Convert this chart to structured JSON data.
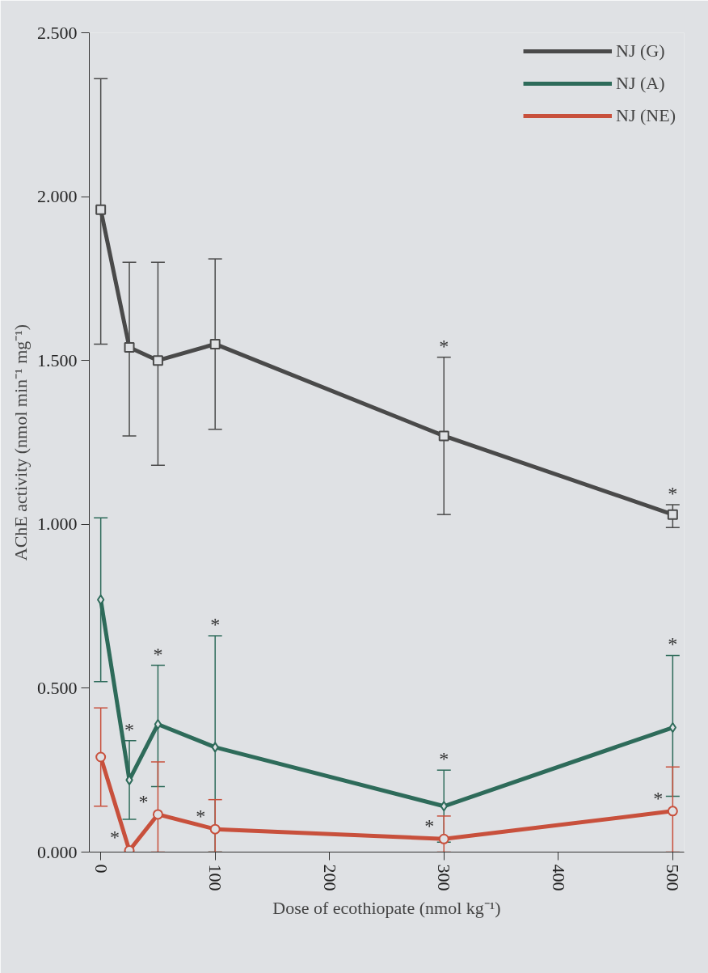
{
  "chart_data": {
    "type": "line",
    "xlabel": "Dose of ecothiopate (nmol kg⁻¹)",
    "ylabel": "AChE activity (nmol min⁻¹ mg⁻¹)",
    "x": [
      0,
      25,
      50,
      100,
      300,
      500
    ],
    "xlim": [
      -10,
      510
    ],
    "xticks": [
      0,
      100,
      200,
      300,
      400,
      500
    ],
    "ylim": [
      0,
      2.5
    ],
    "yticks": [
      {
        "value": 0,
        "label": "0.000"
      },
      {
        "value": 0.5,
        "label": "0.500"
      },
      {
        "value": 1,
        "label": "1.000"
      },
      {
        "value": 1.5,
        "label": "1.500"
      },
      {
        "value": 2,
        "label": "2.000"
      },
      {
        "value": 2.5,
        "label": "2.500"
      }
    ],
    "grid": false,
    "legend": "top right",
    "line_style": "solid",
    "series": [
      {
        "name": "NJ (G)",
        "color": "#4a4a4a",
        "marker": "square",
        "values": [
          1.96,
          1.54,
          1.5,
          1.55,
          1.27,
          1.03
        ],
        "errors": [
          [
            1.55,
            2.36
          ],
          [
            1.27,
            1.8
          ],
          [
            1.18,
            1.8
          ],
          [
            1.29,
            1.81
          ],
          [
            1.03,
            1.51
          ],
          [
            0.99,
            1.06
          ]
        ]
      },
      {
        "name": "NJ (A)",
        "color": "#2e6b5a",
        "marker": "diamond",
        "values": [
          0.77,
          0.22,
          0.39,
          0.32,
          0.14,
          0.38
        ],
        "errors": [
          [
            0.52,
            1.02
          ],
          [
            0.1,
            0.34
          ],
          [
            0.2,
            0.57
          ],
          [
            0,
            0.66
          ],
          [
            0.03,
            0.25
          ],
          [
            0.17,
            0.6
          ]
        ]
      },
      {
        "name": "NJ (NE)",
        "color": "#c8503c",
        "marker": "circle",
        "values": [
          0.29,
          0.005,
          0.115,
          0.07,
          0.04,
          0.125
        ],
        "errors": [
          [
            0.14,
            0.44
          ],
          null,
          [
            0,
            0.275
          ],
          [
            0,
            0.16
          ],
          [
            0,
            0.11
          ],
          [
            0,
            0.26
          ]
        ]
      }
    ],
    "annotations": [
      {
        "text": "*",
        "x": 300,
        "y": 1.51
      },
      {
        "text": "*",
        "x": 500,
        "y": 1.06
      },
      {
        "text": "*",
        "x": 25,
        "y": 0.34
      },
      {
        "text": "*",
        "x": 50,
        "y": 0.57
      },
      {
        "text": "*",
        "x": 100,
        "y": 0.66
      },
      {
        "text": "*",
        "x": 300,
        "y": 0.25
      },
      {
        "text": "*",
        "x": 500,
        "y": 0.6
      },
      {
        "text": "*",
        "x": 25,
        "y": 0.005
      },
      {
        "text": "*",
        "x": 50,
        "y": 0.115
      },
      {
        "text": "*",
        "x": 100,
        "y": 0.07
      },
      {
        "text": "*",
        "x": 300,
        "y": 0.04
      },
      {
        "text": "*",
        "x": 500,
        "y": 0.125
      }
    ]
  }
}
